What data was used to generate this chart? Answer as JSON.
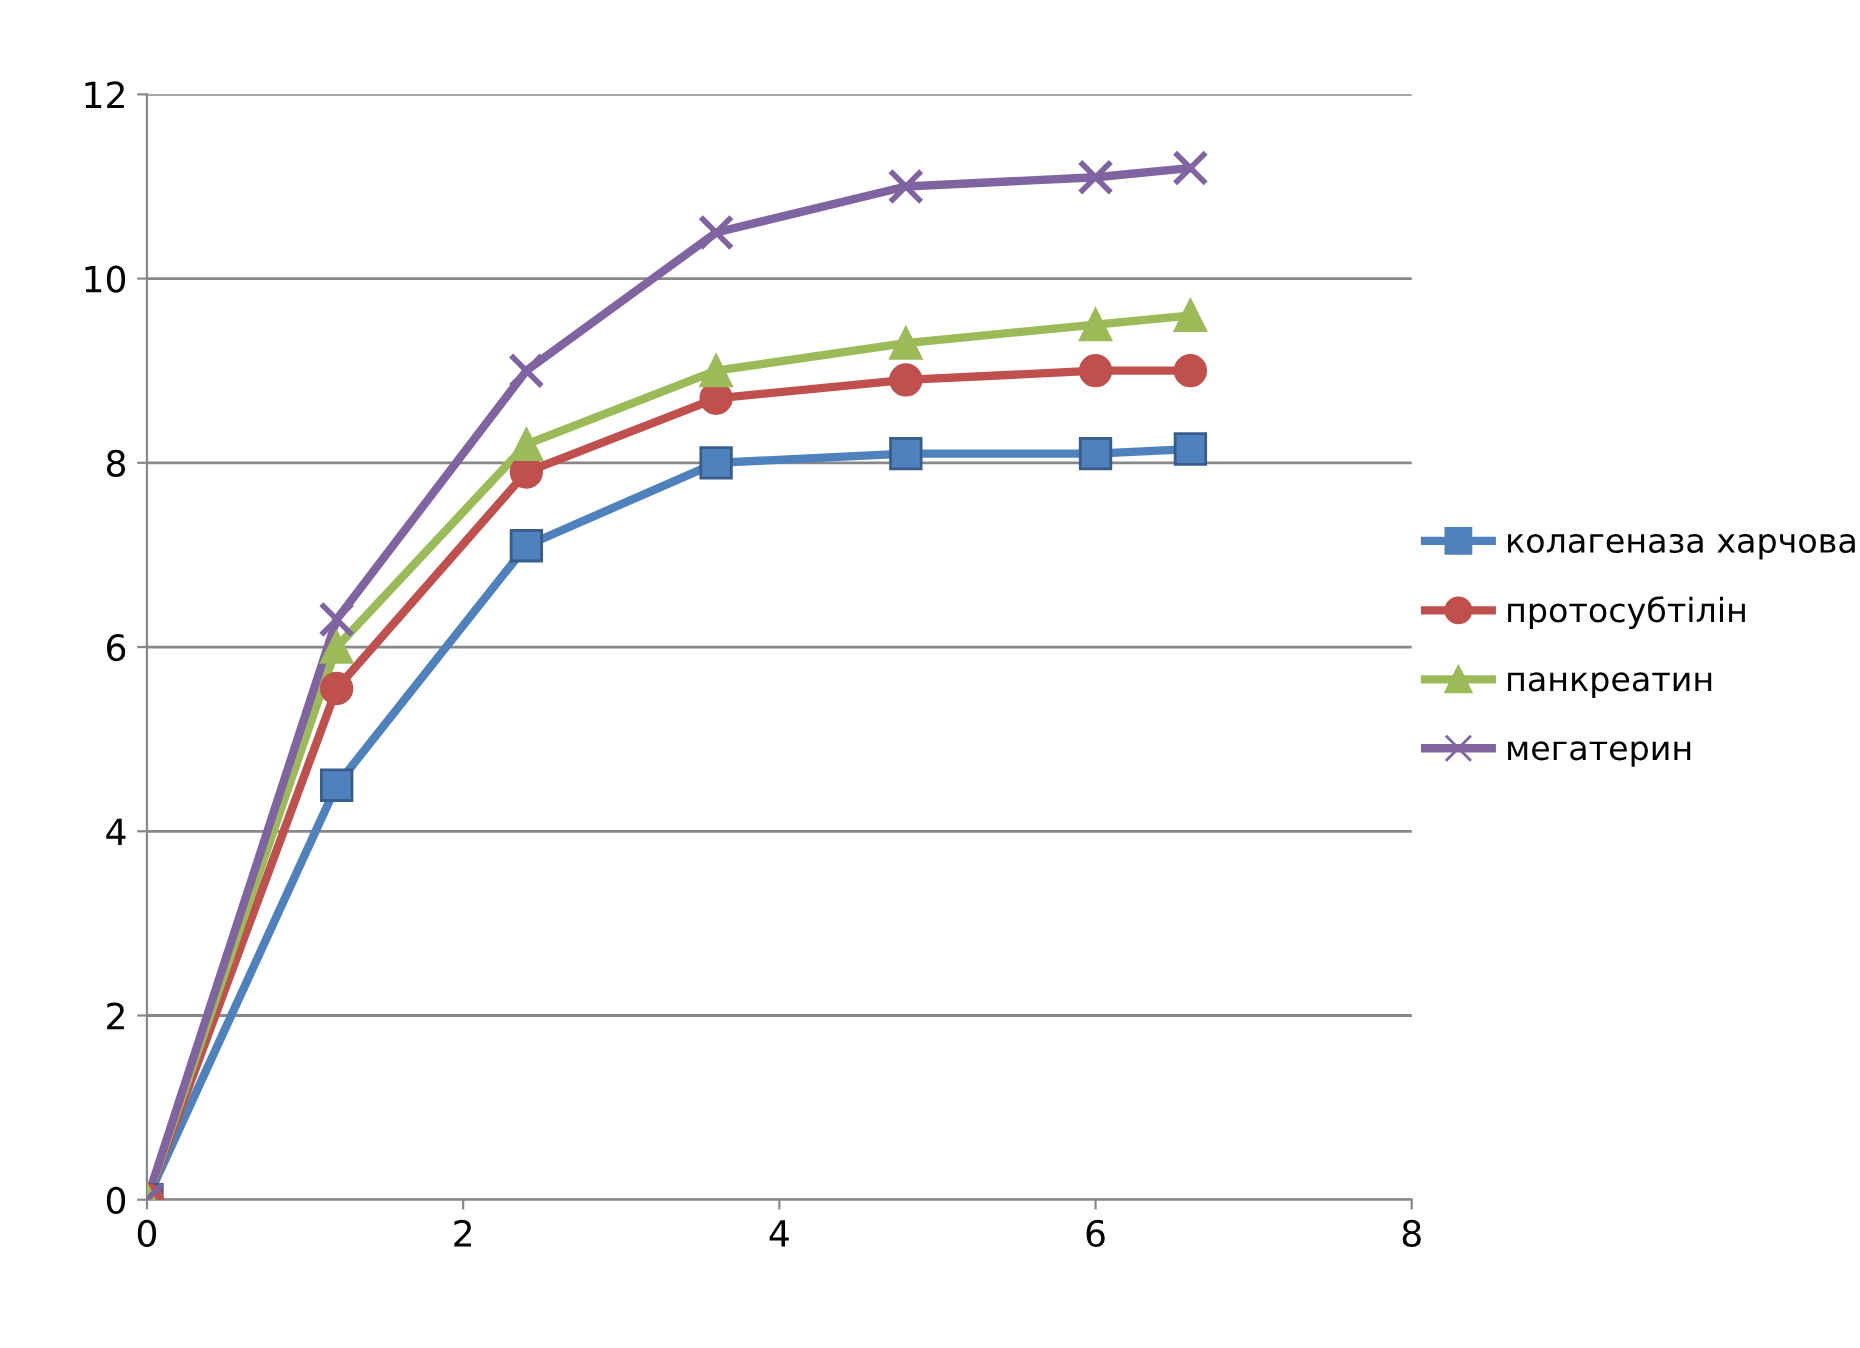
{
  "chart_data": {
    "type": "line",
    "x": [
      0,
      1.2,
      2.4,
      3.6,
      4.8,
      6.0,
      6.6
    ],
    "series": [
      {
        "name": "колагеназа харчова",
        "color": "#4f81bd",
        "marker": "square",
        "values": [
          0,
          4.5,
          7.1,
          8.0,
          8.1,
          8.1,
          8.15
        ]
      },
      {
        "name": "протосубтілін",
        "color": "#c0504d",
        "marker": "circle",
        "values": [
          0,
          5.55,
          7.9,
          8.7,
          8.9,
          9.0,
          9.0
        ]
      },
      {
        "name": "панкреатин",
        "color": "#9bbb59",
        "marker": "triangle",
        "values": [
          0,
          6.0,
          8.2,
          9.0,
          9.3,
          9.5,
          9.6
        ]
      },
      {
        "name": "мегатерин",
        "color": "#8064a2",
        "marker": "cross",
        "values": [
          0,
          6.3,
          9.0,
          10.5,
          11.0,
          11.1,
          11.2
        ]
      }
    ],
    "xlim": [
      0,
      8
    ],
    "xticks": [
      0,
      2,
      4,
      6,
      8
    ],
    "ylim": [
      0,
      12
    ],
    "yticks": [
      0,
      2,
      4,
      6,
      8,
      10,
      12
    ],
    "grid": "y",
    "legend": "right",
    "line_style": "solid"
  }
}
